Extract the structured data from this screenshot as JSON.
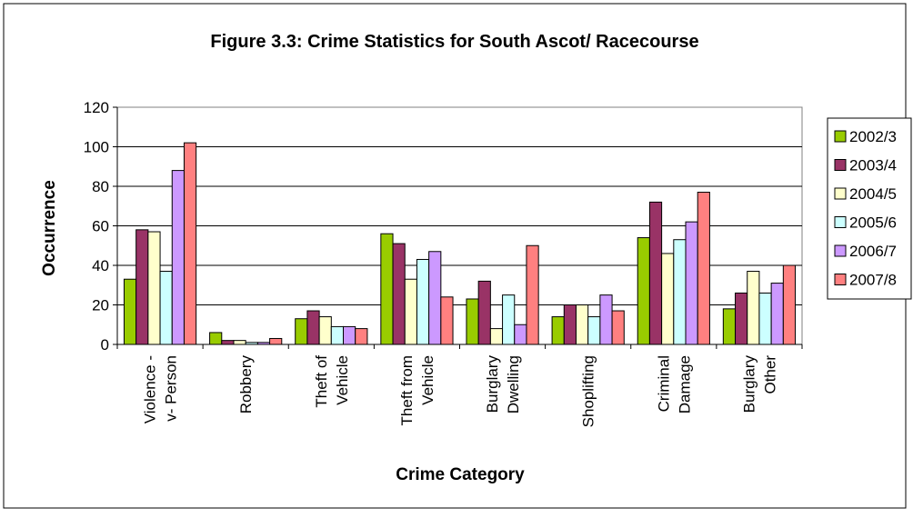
{
  "chart_data": {
    "type": "bar",
    "title": "Figure 3.3: Crime Statistics for South Ascot/ Racecourse",
    "xlabel": "Crime Category",
    "ylabel": "Occurrence",
    "ylim": [
      0,
      120
    ],
    "yticks": [
      "0",
      "20",
      "40",
      "60",
      "80",
      "100",
      "120"
    ],
    "grid": true,
    "legend_position": "right",
    "categories": [
      [
        "Violence -",
        "v- Person"
      ],
      [
        "Robbery"
      ],
      [
        "Theft of",
        "Vehicle"
      ],
      [
        "Theft from",
        "Vehicle"
      ],
      [
        "Burglary",
        "Dwelling"
      ],
      [
        "Shoplifting"
      ],
      [
        "Criminal",
        "Damage"
      ],
      [
        "Burglary",
        "Other"
      ]
    ],
    "series": [
      {
        "name": "2002/3",
        "color": "#99cc00",
        "values": [
          33,
          6,
          13,
          56,
          23,
          14,
          54,
          18
        ]
      },
      {
        "name": "2003/4",
        "color": "#993366",
        "values": [
          58,
          2,
          17,
          51,
          32,
          20,
          72,
          26
        ]
      },
      {
        "name": "2004/5",
        "color": "#ffffcc",
        "values": [
          57,
          2,
          14,
          33,
          8,
          20,
          46,
          37
        ]
      },
      {
        "name": "2005/6",
        "color": "#ccffff",
        "values": [
          37,
          1,
          9,
          43,
          25,
          14,
          53,
          26
        ]
      },
      {
        "name": "2006/7",
        "color": "#cc99ff",
        "values": [
          88,
          1,
          9,
          47,
          10,
          25,
          62,
          31
        ]
      },
      {
        "name": "2007/8",
        "color": "#ff8080",
        "values": [
          102,
          3,
          8,
          24,
          50,
          17,
          77,
          40
        ]
      }
    ]
  }
}
